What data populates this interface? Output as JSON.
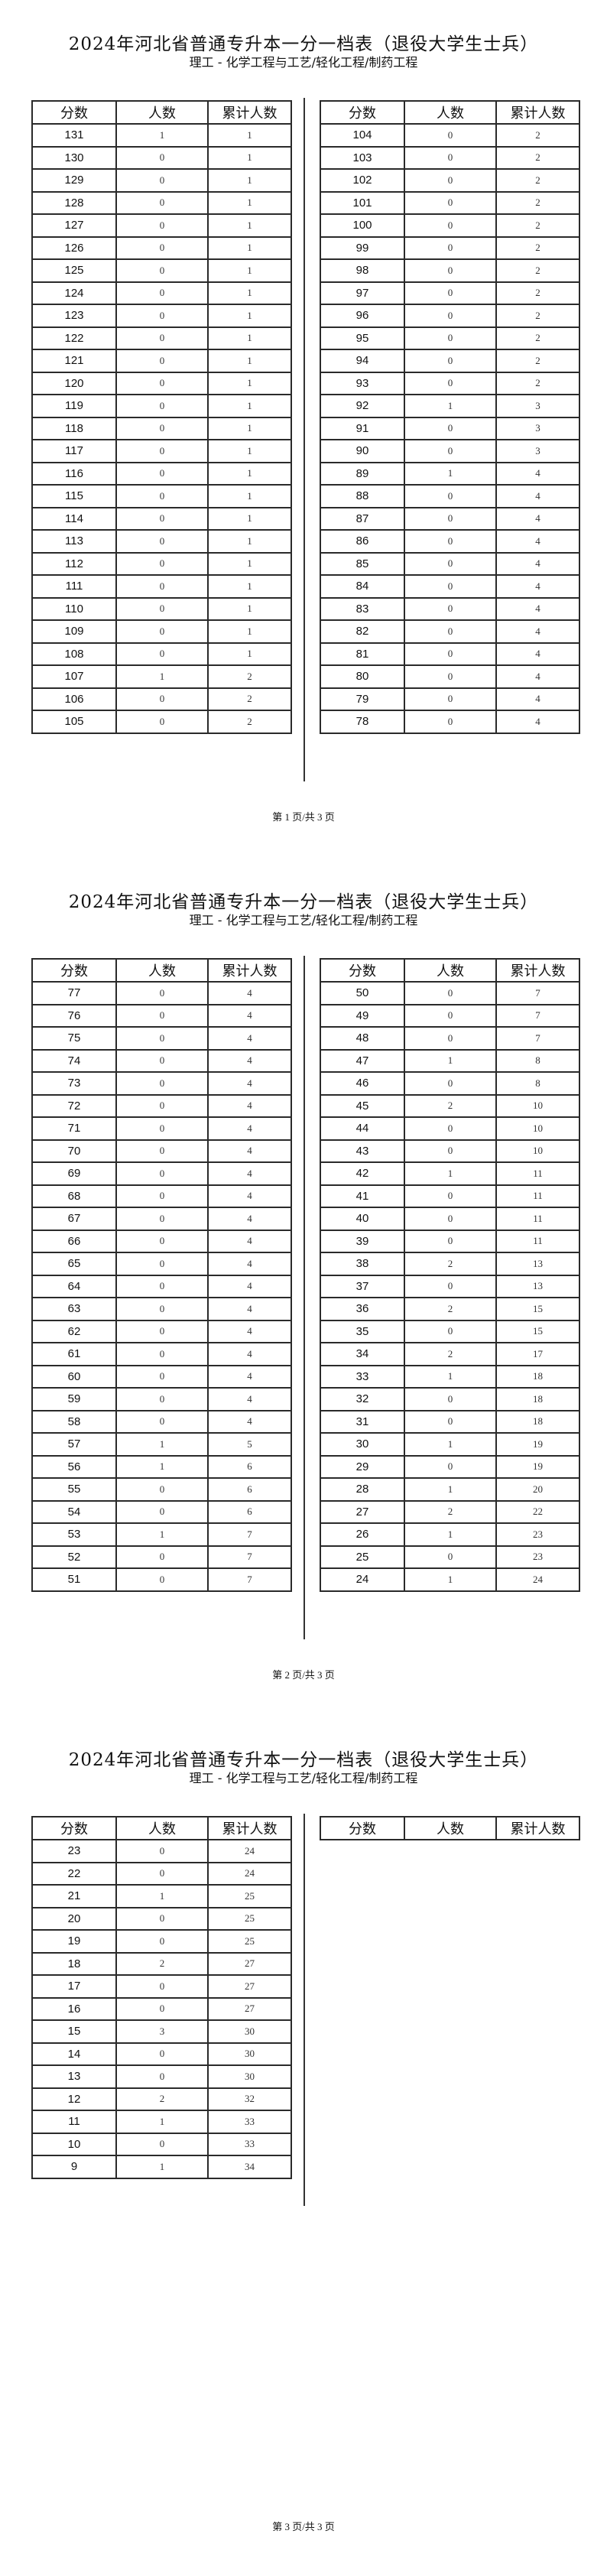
{
  "document": {
    "title": "2024年河北省普通专升本一分一档表（退役大学生士兵）",
    "subtitle": "理工 - 化学工程与工艺/轻化工程/制药工程",
    "columns": [
      "分数",
      "人数",
      "累计人数"
    ]
  },
  "pages": [
    {
      "footer": "第 1 页/共 3 页",
      "left_rows": [
        [
          "131",
          "1",
          "1"
        ],
        [
          "130",
          "0",
          "1"
        ],
        [
          "129",
          "0",
          "1"
        ],
        [
          "128",
          "0",
          "1"
        ],
        [
          "127",
          "0",
          "1"
        ],
        [
          "126",
          "0",
          "1"
        ],
        [
          "125",
          "0",
          "1"
        ],
        [
          "124",
          "0",
          "1"
        ],
        [
          "123",
          "0",
          "1"
        ],
        [
          "122",
          "0",
          "1"
        ],
        [
          "121",
          "0",
          "1"
        ],
        [
          "120",
          "0",
          "1"
        ],
        [
          "119",
          "0",
          "1"
        ],
        [
          "118",
          "0",
          "1"
        ],
        [
          "117",
          "0",
          "1"
        ],
        [
          "116",
          "0",
          "1"
        ],
        [
          "115",
          "0",
          "1"
        ],
        [
          "114",
          "0",
          "1"
        ],
        [
          "113",
          "0",
          "1"
        ],
        [
          "112",
          "0",
          "1"
        ],
        [
          "111",
          "0",
          "1"
        ],
        [
          "110",
          "0",
          "1"
        ],
        [
          "109",
          "0",
          "1"
        ],
        [
          "108",
          "0",
          "1"
        ],
        [
          "107",
          "1",
          "2"
        ],
        [
          "106",
          "0",
          "2"
        ],
        [
          "105",
          "0",
          "2"
        ]
      ],
      "right_rows": [
        [
          "104",
          "0",
          "2"
        ],
        [
          "103",
          "0",
          "2"
        ],
        [
          "102",
          "0",
          "2"
        ],
        [
          "101",
          "0",
          "2"
        ],
        [
          "100",
          "0",
          "2"
        ],
        [
          "99",
          "0",
          "2"
        ],
        [
          "98",
          "0",
          "2"
        ],
        [
          "97",
          "0",
          "2"
        ],
        [
          "96",
          "0",
          "2"
        ],
        [
          "95",
          "0",
          "2"
        ],
        [
          "94",
          "0",
          "2"
        ],
        [
          "93",
          "0",
          "2"
        ],
        [
          "92",
          "1",
          "3"
        ],
        [
          "91",
          "0",
          "3"
        ],
        [
          "90",
          "0",
          "3"
        ],
        [
          "89",
          "1",
          "4"
        ],
        [
          "88",
          "0",
          "4"
        ],
        [
          "87",
          "0",
          "4"
        ],
        [
          "86",
          "0",
          "4"
        ],
        [
          "85",
          "0",
          "4"
        ],
        [
          "84",
          "0",
          "4"
        ],
        [
          "83",
          "0",
          "4"
        ],
        [
          "82",
          "0",
          "4"
        ],
        [
          "81",
          "0",
          "4"
        ],
        [
          "80",
          "0",
          "4"
        ],
        [
          "79",
          "0",
          "4"
        ],
        [
          "78",
          "0",
          "4"
        ]
      ]
    },
    {
      "footer": "第 2 页/共 3 页",
      "left_rows": [
        [
          "77",
          "0",
          "4"
        ],
        [
          "76",
          "0",
          "4"
        ],
        [
          "75",
          "0",
          "4"
        ],
        [
          "74",
          "0",
          "4"
        ],
        [
          "73",
          "0",
          "4"
        ],
        [
          "72",
          "0",
          "4"
        ],
        [
          "71",
          "0",
          "4"
        ],
        [
          "70",
          "0",
          "4"
        ],
        [
          "69",
          "0",
          "4"
        ],
        [
          "68",
          "0",
          "4"
        ],
        [
          "67",
          "0",
          "4"
        ],
        [
          "66",
          "0",
          "4"
        ],
        [
          "65",
          "0",
          "4"
        ],
        [
          "64",
          "0",
          "4"
        ],
        [
          "63",
          "0",
          "4"
        ],
        [
          "62",
          "0",
          "4"
        ],
        [
          "61",
          "0",
          "4"
        ],
        [
          "60",
          "0",
          "4"
        ],
        [
          "59",
          "0",
          "4"
        ],
        [
          "58",
          "0",
          "4"
        ],
        [
          "57",
          "1",
          "5"
        ],
        [
          "56",
          "1",
          "6"
        ],
        [
          "55",
          "0",
          "6"
        ],
        [
          "54",
          "0",
          "6"
        ],
        [
          "53",
          "1",
          "7"
        ],
        [
          "52",
          "0",
          "7"
        ],
        [
          "51",
          "0",
          "7"
        ]
      ],
      "right_rows": [
        [
          "50",
          "0",
          "7"
        ],
        [
          "49",
          "0",
          "7"
        ],
        [
          "48",
          "0",
          "7"
        ],
        [
          "47",
          "1",
          "8"
        ],
        [
          "46",
          "0",
          "8"
        ],
        [
          "45",
          "2",
          "10"
        ],
        [
          "44",
          "0",
          "10"
        ],
        [
          "43",
          "0",
          "10"
        ],
        [
          "42",
          "1",
          "11"
        ],
        [
          "41",
          "0",
          "11"
        ],
        [
          "40",
          "0",
          "11"
        ],
        [
          "39",
          "0",
          "11"
        ],
        [
          "38",
          "2",
          "13"
        ],
        [
          "37",
          "0",
          "13"
        ],
        [
          "36",
          "2",
          "15"
        ],
        [
          "35",
          "0",
          "15"
        ],
        [
          "34",
          "2",
          "17"
        ],
        [
          "33",
          "1",
          "18"
        ],
        [
          "32",
          "0",
          "18"
        ],
        [
          "31",
          "0",
          "18"
        ],
        [
          "30",
          "1",
          "19"
        ],
        [
          "29",
          "0",
          "19"
        ],
        [
          "28",
          "1",
          "20"
        ],
        [
          "27",
          "2",
          "22"
        ],
        [
          "26",
          "1",
          "23"
        ],
        [
          "25",
          "0",
          "23"
        ],
        [
          "24",
          "1",
          "24"
        ]
      ]
    },
    {
      "footer": "第 3 页/共 3 页",
      "left_rows": [
        [
          "23",
          "0",
          "24"
        ],
        [
          "22",
          "0",
          "24"
        ],
        [
          "21",
          "1",
          "25"
        ],
        [
          "20",
          "0",
          "25"
        ],
        [
          "19",
          "0",
          "25"
        ],
        [
          "18",
          "2",
          "27"
        ],
        [
          "17",
          "0",
          "27"
        ],
        [
          "16",
          "0",
          "27"
        ],
        [
          "15",
          "3",
          "30"
        ],
        [
          "14",
          "0",
          "30"
        ],
        [
          "13",
          "0",
          "30"
        ],
        [
          "12",
          "2",
          "32"
        ],
        [
          "11",
          "1",
          "33"
        ],
        [
          "10",
          "0",
          "33"
        ],
        [
          "9",
          "1",
          "34"
        ]
      ],
      "right_rows": []
    }
  ]
}
